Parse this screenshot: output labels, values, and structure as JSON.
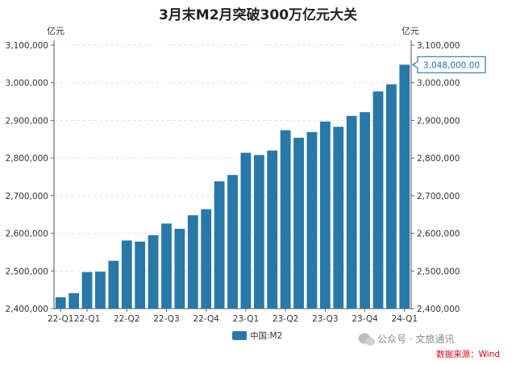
{
  "chart_data": {
    "type": "bar",
    "title": "3月末M2月突破300万亿元大关",
    "ylabel_left": "亿元",
    "ylabel_right": "亿元",
    "ylim": [
      2400000,
      3100000
    ],
    "yticks": [
      2400000,
      2500000,
      2600000,
      2700000,
      2800000,
      2900000,
      3000000,
      3100000
    ],
    "ytick_labels": [
      "2,400,000",
      "2,500,000",
      "2,600,000",
      "2,700,000",
      "2,800,000",
      "2,900,000",
      "3,000,000",
      "3,100,000"
    ],
    "x_tick_labels": [
      {
        "index": 0,
        "label": "22-Q1"
      },
      {
        "index": 2,
        "label": "22-Q1"
      },
      {
        "index": 5,
        "label": "22-Q2"
      },
      {
        "index": 8,
        "label": "22-Q3"
      },
      {
        "index": 11,
        "label": "22-Q4"
      },
      {
        "index": 14,
        "label": "23-Q1"
      },
      {
        "index": 17,
        "label": "23-Q2"
      },
      {
        "index": 20,
        "label": "23-Q3"
      },
      {
        "index": 23,
        "label": "23-Q4"
      },
      {
        "index": 26,
        "label": "24-Q1"
      }
    ],
    "series": [
      {
        "name": "中国:M2",
        "color": "#2878a8",
        "values": [
          2430000,
          2441000,
          2497000,
          2498000,
          2527000,
          2581000,
          2578000,
          2595000,
          2626000,
          2612000,
          2648000,
          2664000,
          2738000,
          2755000,
          2814000,
          2808000,
          2820000,
          2874000,
          2854000,
          2869000,
          2897000,
          2883000,
          2912000,
          2922000,
          2977000,
          2996000,
          3048000
        ]
      }
    ],
    "annotation": {
      "index": 26,
      "text": "3,048,000.00"
    },
    "grid": "horizontal-dashed",
    "legend": "bottom-center"
  },
  "footer": {
    "watermark": "公众号 · 文旅通讯",
    "source": "数据来源：Wind"
  }
}
